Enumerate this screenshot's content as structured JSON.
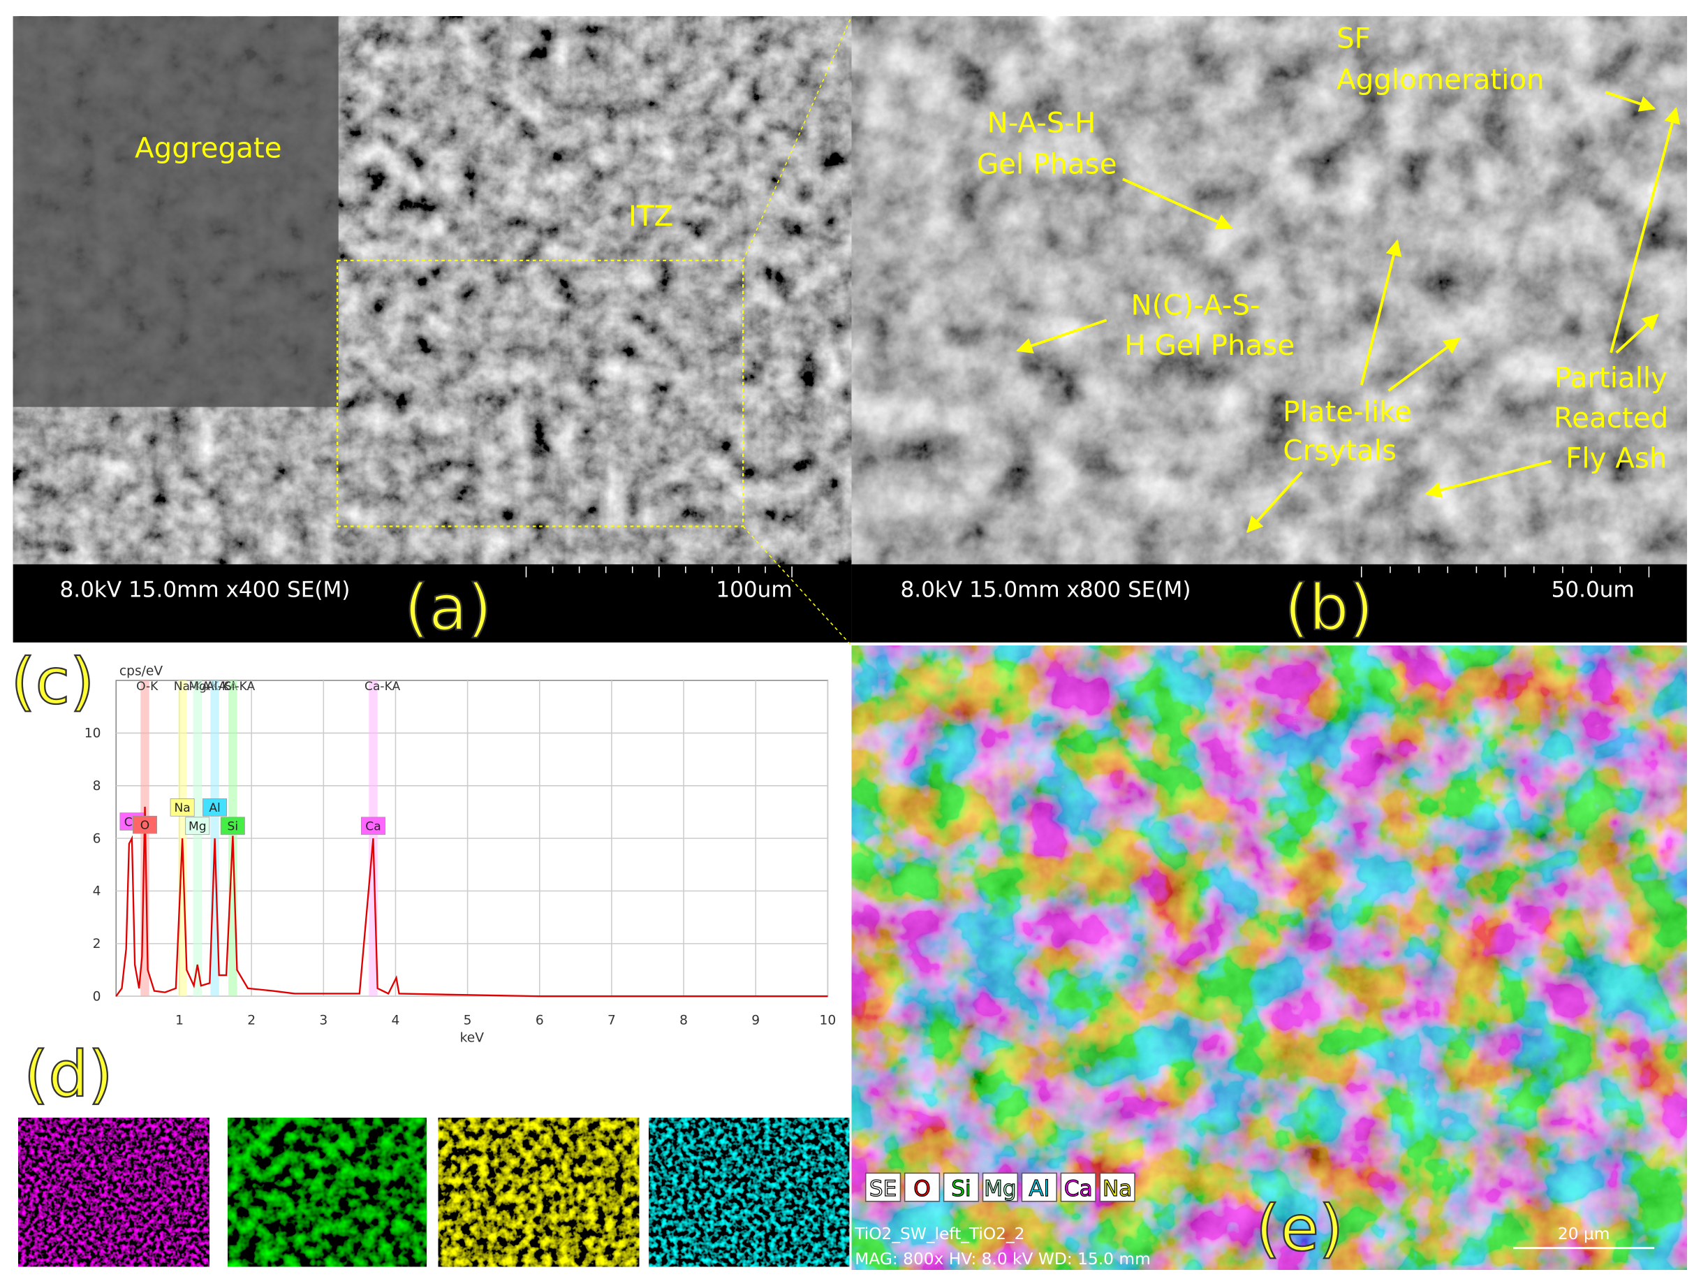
{
  "panels": {
    "a": {
      "label": "(a)",
      "annotations": [
        "Aggregate",
        "ITZ"
      ],
      "info": "8.0kV 15.0mm x400 SE(M)",
      "scale": "100um"
    },
    "b": {
      "label": "(b)",
      "annotations": [
        "SF",
        "Agglomeration",
        "N-A-S-H",
        "Gel Phase",
        "N(C)-A-S-",
        "H Gel Phase",
        "Plate-like",
        "Crsytals",
        "Partially",
        "Reacted",
        "Fly Ash"
      ],
      "info": "8.0kV 15.0mm x800 SE(M)",
      "scale": "50.0um"
    },
    "c": {
      "label": "(c)"
    },
    "d": {
      "label": "(d)"
    },
    "e": {
      "label": "(e)",
      "legend": [
        {
          "name": "SE",
          "color": "#ffffff"
        },
        {
          "name": "O",
          "color": "#ff0000"
        },
        {
          "name": "Si",
          "color": "#00dd00"
        },
        {
          "name": "Mg",
          "color": "#aaffcc"
        },
        {
          "name": "Al",
          "color": "#00e5ff"
        },
        {
          "name": "Ca",
          "color": "#ff00ff"
        },
        {
          "name": "Na",
          "color": "#ffff00"
        }
      ],
      "info": "TiO2_SW_left_TiO2_2",
      "settings": "MAG: 800x   HV: 8.0 kV   WD: 15.0 mm",
      "scale": "20 μm"
    }
  },
  "chart_data": {
    "type": "line",
    "xlabel": "keV",
    "ylabel": "cps/eV",
    "color": "#e00000",
    "x": [
      0.12,
      0.2,
      0.26,
      0.3,
      0.34,
      0.38,
      0.44,
      0.48,
      0.52,
      0.56,
      0.65,
      0.8,
      0.95,
      1.04,
      1.1,
      1.2,
      1.25,
      1.3,
      1.42,
      1.49,
      1.55,
      1.65,
      1.74,
      1.8,
      1.95,
      2.3,
      2.6,
      3.0,
      3.5,
      3.69,
      3.75,
      3.9,
      4.01,
      4.05,
      5,
      6,
      7,
      8,
      9,
      10
    ],
    "values": [
      0,
      0.3,
      1.8,
      5.8,
      6.0,
      1.2,
      0.3,
      1.5,
      7.2,
      1.0,
      0.2,
      0.15,
      0.3,
      6.0,
      1.0,
      0.4,
      1.2,
      0.4,
      0.5,
      6.0,
      0.8,
      0.8,
      6.1,
      1.0,
      0.3,
      0.2,
      0.1,
      0.1,
      0.1,
      6.0,
      0.3,
      0.1,
      0.7,
      0.1,
      0.05,
      0,
      0,
      0,
      0,
      0
    ],
    "xlim": [
      0.12,
      10
    ],
    "ylim": [
      0,
      12
    ],
    "xticks": [
      1,
      2,
      3,
      4,
      5,
      6,
      7,
      8,
      9,
      10
    ],
    "yticks": [
      0,
      2,
      4,
      6,
      8,
      10
    ],
    "grid": true,
    "element_lines": [
      {
        "name": "O-K",
        "x": 0.52,
        "color": "#ffaaaa"
      },
      {
        "name": "Na-KA",
        "x": 1.04,
        "color": "#ffff99"
      },
      {
        "name": "Mg-KA",
        "x": 1.25,
        "color": "#ccffdd"
      },
      {
        "name": "Al-KA",
        "x": 1.49,
        "color": "#aaf0ff"
      },
      {
        "name": "Si-KA",
        "x": 1.74,
        "color": "#aaffaa"
      },
      {
        "name": "Ca-KA",
        "x": 3.69,
        "color": "#ffbbff"
      }
    ],
    "peak_labels": [
      {
        "text": "Ca",
        "x": 0.34,
        "color": "#ff66ff"
      },
      {
        "text": "O",
        "x": 0.52,
        "color": "#ff6666"
      },
      {
        "text": "Na",
        "x": 1.04,
        "color": "#ffff88"
      },
      {
        "text": "Mg",
        "x": 1.25,
        "color": "#ddffee"
      },
      {
        "text": "Al",
        "x": 1.49,
        "color": "#44e0ff"
      },
      {
        "text": "Si",
        "x": 1.74,
        "color": "#44ee44"
      },
      {
        "text": "Ca",
        "x": 3.69,
        "color": "#ff66ff"
      }
    ]
  }
}
